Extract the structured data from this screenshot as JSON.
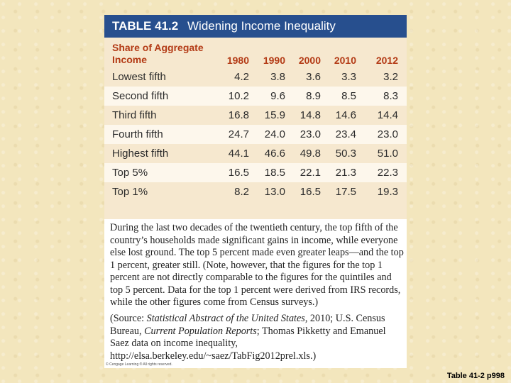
{
  "card": {
    "number": "TABLE 41.2",
    "title": "Widening Income Inequality",
    "row_header_label": "Share of Aggregate Income",
    "caption": "During the last two decades of the twentieth century, the top fifth of the country’s households made significant gains in income, while everyone else lost ground. The top 5 percent made even greater leaps—and the top 1 percent, greater still. (Note, however, that the figures for the top 1 percent are not directly comparable to the figures for the quintiles and top 5 percent. Data for the top 1 percent were derived from IRS records, while the other figures come from Census surveys.)",
    "source": {
      "open": "(Source: ",
      "title1": "Statistical Abstract of the United States",
      "part2": ", 2010; U.S. Census Bureau, ",
      "title2": "Current Population Reports",
      "part3": "; Thomas Pikketty and Emanuel Saez data on income inequality, http://elsa.berkeley.edu/~saez/TabFig2012prel.xls.)"
    },
    "copyright": "© Cengage Learning ® All rights reserved."
  },
  "slide_reference": "Table 41-2 p998",
  "chart_data": {
    "type": "table",
    "columns": [
      "1980",
      "1990",
      "2000",
      "2010",
      "2012"
    ],
    "rows": [
      {
        "label": "Lowest fifth",
        "values": [
          "4.2",
          "3.8",
          "3.6",
          "3.3",
          "3.2"
        ]
      },
      {
        "label": "Second fifth",
        "values": [
          "10.2",
          "9.6",
          "8.9",
          "8.5",
          "8.3"
        ]
      },
      {
        "label": "Third fifth",
        "values": [
          "16.8",
          "15.9",
          "14.8",
          "14.6",
          "14.4"
        ]
      },
      {
        "label": "Fourth fifth",
        "values": [
          "24.7",
          "24.0",
          "23.0",
          "23.4",
          "23.0"
        ]
      },
      {
        "label": "Highest fifth",
        "values": [
          "44.1",
          "46.6",
          "49.8",
          "50.3",
          "51.0"
        ]
      },
      {
        "label": "Top 5%",
        "values": [
          "16.5",
          "18.5",
          "22.1",
          "21.3",
          "22.3"
        ]
      },
      {
        "label": "Top 1%",
        "values": [
          "8.2",
          "13.0",
          "16.5",
          "17.5",
          "19.3"
        ]
      }
    ]
  },
  "colors": {
    "header_bar": "#274f8e",
    "header_text": "#ffffff",
    "accent_red": "#b33a15",
    "row_tint": "#f6e8cf",
    "row_alt": "#fdf7ec",
    "background": "#f3e6bd"
  }
}
